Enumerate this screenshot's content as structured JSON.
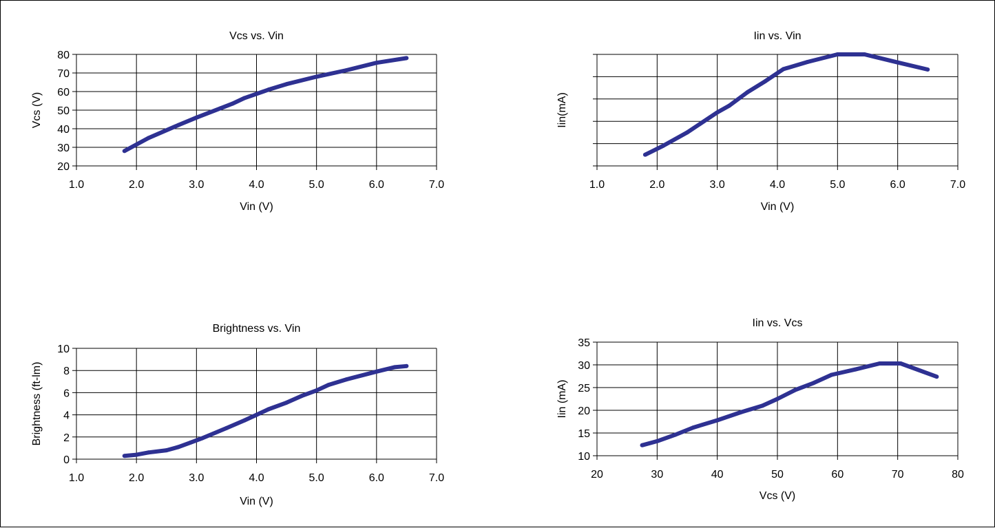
{
  "colors": {
    "line": "#2e3192",
    "grid": "#000000"
  },
  "chart_data": [
    {
      "type": "line",
      "title": "Vcs vs. Vin",
      "xlabel": "Vin (V)",
      "ylabel": "Vcs (V)",
      "xlim": [
        1.0,
        7.0
      ],
      "ylim": [
        20,
        80
      ],
      "xticks": [
        "1.0",
        "2.0",
        "3.0",
        "4.0",
        "5.0",
        "6.0",
        "7.0"
      ],
      "yticks": [
        "20",
        "30",
        "40",
        "50",
        "60",
        "70",
        "80"
      ],
      "grid": true,
      "series": [
        {
          "x": [
            1.8,
            2.2,
            2.7,
            3.0,
            3.4,
            3.6,
            3.8,
            4.2,
            4.5,
            5.0,
            5.5,
            6.0,
            6.5
          ],
          "y": [
            28,
            35,
            42,
            46,
            51,
            53.5,
            56.5,
            61,
            64,
            68,
            71.5,
            75.5,
            78
          ]
        }
      ]
    },
    {
      "type": "line",
      "title": "Iin vs. Vin",
      "xlabel": "Vin (V)",
      "ylabel": "Iin(mA)",
      "xlim": [
        1.0,
        7.0
      ],
      "ylim": [
        10,
        35
      ],
      "xticks": [
        "1.0",
        "2.0",
        "3.0",
        "4.0",
        "5.0",
        "6.0",
        "7.0"
      ],
      "yticks": [
        "",
        "",
        "",
        "",
        "",
        ""
      ],
      "grid": true,
      "series": [
        {
          "x": [
            1.8,
            2.1,
            2.5,
            3.0,
            3.2,
            3.5,
            3.8,
            4.1,
            4.5,
            5.0,
            5.45,
            6.0,
            6.5
          ],
          "y": [
            12.5,
            14.5,
            17.5,
            22,
            23.5,
            26.5,
            29,
            31.7,
            33.3,
            35,
            35,
            33.2,
            31.6
          ]
        }
      ]
    },
    {
      "type": "line",
      "title": "Brightness vs. Vin",
      "xlabel": "Vin (V)",
      "ylabel": "Brightness (ft-lm)",
      "xlim": [
        1.0,
        7.0
      ],
      "ylim": [
        0,
        10
      ],
      "xticks": [
        "1.0",
        "2.0",
        "3.0",
        "4.0",
        "5.0",
        "6.0",
        "7.0"
      ],
      "yticks": [
        "0",
        "2",
        "4",
        "6",
        "8",
        "10"
      ],
      "grid": true,
      "series": [
        {
          "x": [
            1.8,
            2.0,
            2.2,
            2.5,
            2.7,
            2.9,
            3.1,
            3.5,
            3.8,
            4.0,
            4.2,
            4.5,
            4.75,
            5.0,
            5.2,
            5.5,
            6.0,
            6.3,
            6.5
          ],
          "y": [
            0.3,
            0.4,
            0.6,
            0.8,
            1.1,
            1.5,
            1.9,
            2.8,
            3.5,
            4.0,
            4.5,
            5.1,
            5.7,
            6.2,
            6.7,
            7.2,
            7.9,
            8.3,
            8.4
          ]
        }
      ]
    },
    {
      "type": "line",
      "title": "Iin vs. Vcs",
      "xlabel": "Vcs (V)",
      "ylabel": "Iin (mA)",
      "xlim": [
        20,
        80
      ],
      "ylim": [
        10,
        35
      ],
      "xticks": [
        "20",
        "30",
        "40",
        "50",
        "60",
        "70",
        "80"
      ],
      "yticks": [
        "10",
        "15",
        "20",
        "25",
        "30",
        "35"
      ],
      "grid": true,
      "series": [
        {
          "x": [
            27.5,
            30,
            33,
            36,
            40,
            44,
            47.5,
            50,
            53,
            56,
            59,
            63,
            67,
            70.5,
            76.5
          ],
          "y": [
            12.3,
            13.2,
            14.6,
            16.2,
            17.8,
            19.6,
            21,
            22.5,
            24.5,
            26,
            27.8,
            29,
            30.3,
            30.3,
            27.4
          ]
        }
      ]
    }
  ]
}
